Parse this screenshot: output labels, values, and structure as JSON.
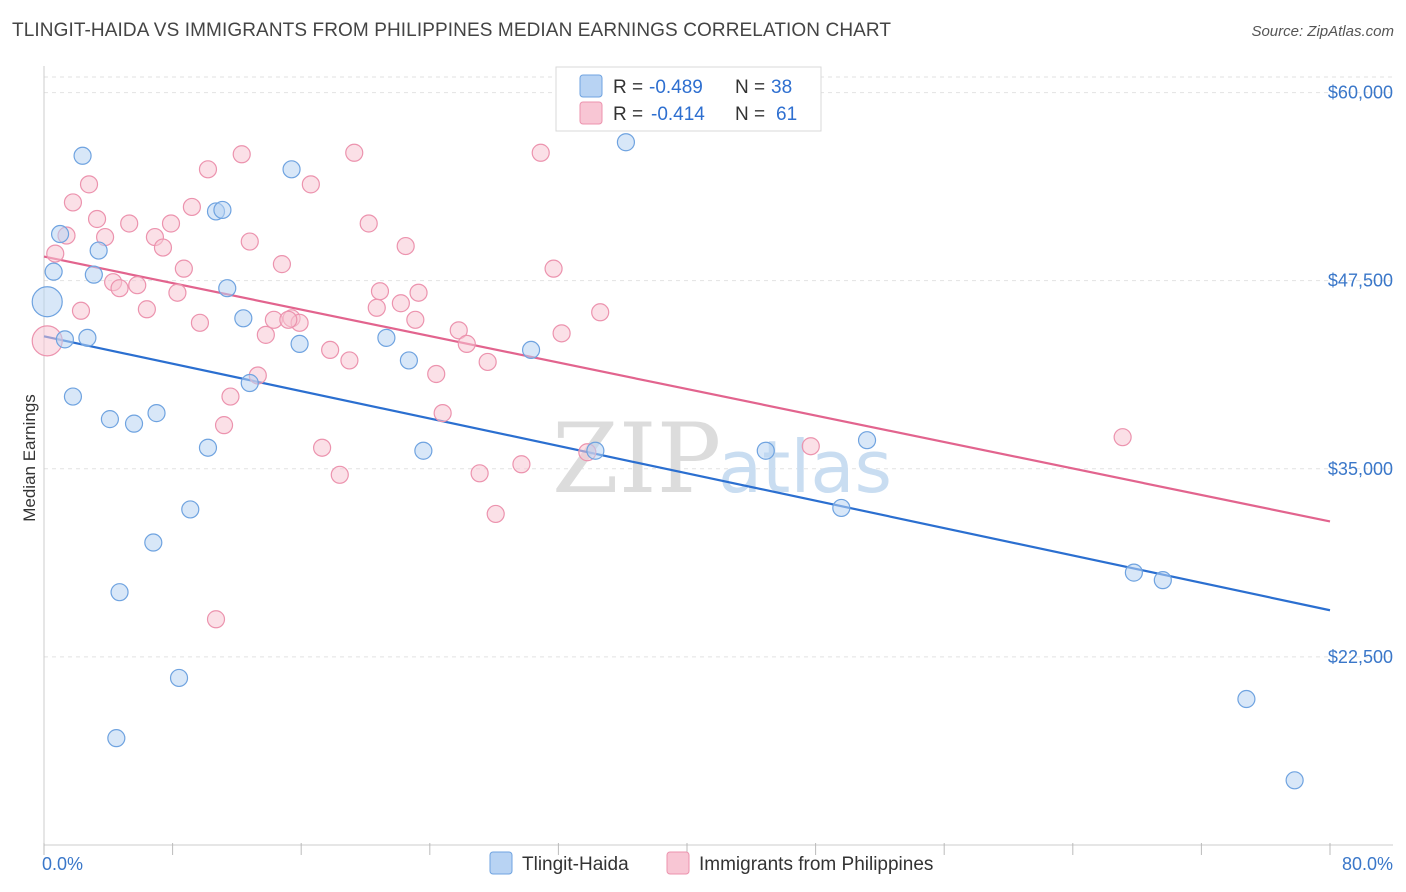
{
  "header": {
    "title": "TLINGIT-HAIDA VS IMMIGRANTS FROM PHILIPPINES MEDIAN EARNINGS CORRELATION CHART",
    "source": "Source: ZipAtlas.com"
  },
  "watermark": {
    "zip": "ZIP",
    "atlas": "atlas"
  },
  "legend": {
    "series1": {
      "r_label": "R = ",
      "r_value": "-0.489",
      "n_label": "N = ",
      "n_value": "38"
    },
    "series2": {
      "r_label": "R = ",
      "r_value": "-0.414",
      "n_label": "N = ",
      "n_value": "61"
    }
  },
  "bottom_legend": {
    "series1": "Tlingit-Haida",
    "series2": "Immigrants from Philippines"
  },
  "colors": {
    "series1_fill": "#b8d3f3",
    "series1_stroke": "#6fa3e0",
    "series1_line": "#2b6fd0",
    "series2_fill": "#f8c6d4",
    "series2_stroke": "#ec93ae",
    "series2_line": "#e2648e",
    "grid": "#e2e2e2",
    "axis_text": "#3a77c9"
  },
  "chart_data": {
    "type": "scatter",
    "title": "TLINGIT-HAIDA VS IMMIGRANTS FROM PHILIPPINES MEDIAN EARNINGS CORRELATION CHART",
    "xlabel": "",
    "ylabel": "Median Earnings",
    "xlim": [
      0,
      80
    ],
    "ylim": [
      10000,
      61500
    ],
    "x_tick_labels": [
      "0.0%",
      "80.0%"
    ],
    "y_ticks": [
      22500,
      35000,
      47500,
      60000
    ],
    "y_tick_labels": [
      "$22,500",
      "$35,000",
      "$47,500",
      "$60,000"
    ],
    "grid": true,
    "series": [
      {
        "name": "Tlingit-Haida",
        "r": -0.489,
        "n": 38,
        "trend": {
          "x0": 0,
          "y0": 43800,
          "x1": 80,
          "y1": 25600
        },
        "points": [
          {
            "x": 0.2,
            "y": 46100,
            "big": true
          },
          {
            "x": 0.6,
            "y": 48100
          },
          {
            "x": 1.0,
            "y": 50600
          },
          {
            "x": 1.3,
            "y": 43600
          },
          {
            "x": 1.8,
            "y": 39800
          },
          {
            "x": 2.4,
            "y": 55800
          },
          {
            "x": 2.7,
            "y": 43700
          },
          {
            "x": 3.1,
            "y": 47900
          },
          {
            "x": 3.4,
            "y": 49500
          },
          {
            "x": 4.1,
            "y": 38300
          },
          {
            "x": 4.5,
            "y": 17100
          },
          {
            "x": 4.7,
            "y": 26800
          },
          {
            "x": 5.6,
            "y": 38000
          },
          {
            "x": 6.8,
            "y": 30100
          },
          {
            "x": 7.0,
            "y": 38700
          },
          {
            "x": 8.4,
            "y": 21100
          },
          {
            "x": 9.1,
            "y": 32300
          },
          {
            "x": 10.2,
            "y": 36400
          },
          {
            "x": 10.7,
            "y": 52100
          },
          {
            "x": 11.1,
            "y": 52200
          },
          {
            "x": 11.4,
            "y": 47000
          },
          {
            "x": 12.4,
            "y": 45000
          },
          {
            "x": 12.8,
            "y": 40700
          },
          {
            "x": 15.4,
            "y": 54900
          },
          {
            "x": 15.9,
            "y": 43300
          },
          {
            "x": 21.3,
            "y": 43700
          },
          {
            "x": 22.7,
            "y": 42200
          },
          {
            "x": 23.6,
            "y": 36200
          },
          {
            "x": 30.3,
            "y": 42900
          },
          {
            "x": 34.3,
            "y": 36200
          },
          {
            "x": 36.2,
            "y": 56700
          },
          {
            "x": 44.9,
            "y": 36200
          },
          {
            "x": 49.6,
            "y": 32400
          },
          {
            "x": 51.2,
            "y": 36900
          },
          {
            "x": 67.8,
            "y": 28100
          },
          {
            "x": 69.6,
            "y": 27600
          },
          {
            "x": 74.8,
            "y": 19700
          },
          {
            "x": 77.8,
            "y": 14300
          }
        ]
      },
      {
        "name": "Immigrants from Philippines",
        "r": -0.414,
        "n": 61,
        "trend": {
          "x0": 0,
          "y0": 49100,
          "x1": 80,
          "y1": 31500
        },
        "points": [
          {
            "x": 0.2,
            "y": 43500,
            "big": true
          },
          {
            "x": 0.7,
            "y": 49300
          },
          {
            "x": 1.4,
            "y": 50500
          },
          {
            "x": 1.8,
            "y": 52700
          },
          {
            "x": 2.3,
            "y": 45500
          },
          {
            "x": 2.8,
            "y": 53900
          },
          {
            "x": 3.3,
            "y": 51600
          },
          {
            "x": 3.8,
            "y": 50400
          },
          {
            "x": 4.3,
            "y": 47400
          },
          {
            "x": 4.7,
            "y": 47000
          },
          {
            "x": 5.3,
            "y": 51300
          },
          {
            "x": 5.8,
            "y": 47200
          },
          {
            "x": 6.4,
            "y": 45600
          },
          {
            "x": 6.9,
            "y": 50400
          },
          {
            "x": 7.4,
            "y": 49700
          },
          {
            "x": 7.9,
            "y": 51300
          },
          {
            "x": 8.3,
            "y": 46700
          },
          {
            "x": 8.7,
            "y": 48300
          },
          {
            "x": 9.2,
            "y": 52400
          },
          {
            "x": 9.7,
            "y": 44700
          },
          {
            "x": 10.2,
            "y": 54900
          },
          {
            "x": 10.7,
            "y": 25000
          },
          {
            "x": 11.2,
            "y": 37900
          },
          {
            "x": 11.6,
            "y": 39800
          },
          {
            "x": 12.3,
            "y": 55900
          },
          {
            "x": 12.8,
            "y": 50100
          },
          {
            "x": 13.3,
            "y": 41200
          },
          {
            "x": 13.8,
            "y": 43900
          },
          {
            "x": 14.3,
            "y": 44900
          },
          {
            "x": 14.8,
            "y": 48600
          },
          {
            "x": 15.4,
            "y": 45000
          },
          {
            "x": 15.9,
            "y": 44700
          },
          {
            "x": 16.6,
            "y": 53900
          },
          {
            "x": 17.3,
            "y": 36400
          },
          {
            "x": 17.8,
            "y": 42900
          },
          {
            "x": 18.4,
            "y": 34600
          },
          {
            "x": 19.0,
            "y": 42200
          },
          {
            "x": 19.3,
            "y": 56000
          },
          {
            "x": 20.2,
            "y": 51300
          },
          {
            "x": 20.7,
            "y": 45700
          },
          {
            "x": 20.9,
            "y": 46800
          },
          {
            "x": 22.2,
            "y": 46000
          },
          {
            "x": 22.5,
            "y": 49800
          },
          {
            "x": 23.1,
            "y": 44900
          },
          {
            "x": 23.3,
            "y": 46700
          },
          {
            "x": 24.4,
            "y": 41300
          },
          {
            "x": 24.8,
            "y": 38700
          },
          {
            "x": 25.8,
            "y": 44200
          },
          {
            "x": 26.3,
            "y": 43300
          },
          {
            "x": 27.1,
            "y": 34700
          },
          {
            "x": 27.6,
            "y": 42100
          },
          {
            "x": 28.1,
            "y": 32000
          },
          {
            "x": 29.7,
            "y": 35300
          },
          {
            "x": 30.9,
            "y": 56000
          },
          {
            "x": 31.7,
            "y": 48300
          },
          {
            "x": 32.2,
            "y": 44000
          },
          {
            "x": 33.8,
            "y": 36100
          },
          {
            "x": 34.6,
            "y": 45400
          },
          {
            "x": 47.7,
            "y": 36500
          },
          {
            "x": 67.1,
            "y": 37100
          },
          {
            "x": 15.2,
            "y": 44900
          }
        ]
      }
    ]
  }
}
